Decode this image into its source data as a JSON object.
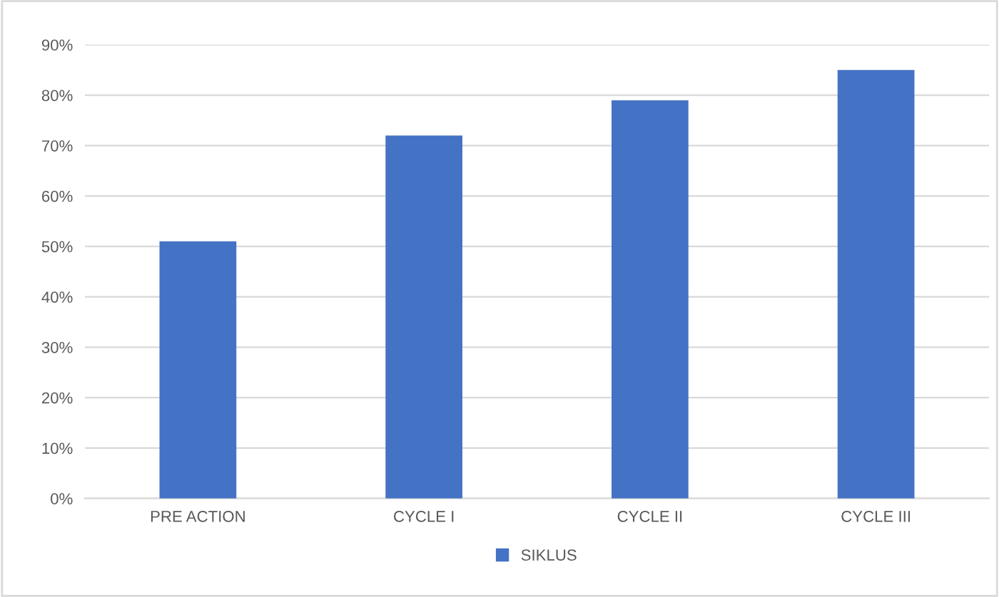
{
  "chart_data": {
    "type": "bar",
    "categories": [
      "PRE ACTION",
      "CYCLE I",
      "CYCLE II",
      "CYCLE III"
    ],
    "series": [
      {
        "name": "SIKLUS",
        "color": "#4472c4",
        "values": [
          51,
          72,
          79,
          85
        ]
      }
    ],
    "ylim": [
      0,
      90
    ],
    "yticks": [
      {
        "value": 0,
        "label": "0%"
      },
      {
        "value": 10,
        "label": "10%"
      },
      {
        "value": 20,
        "label": "20%"
      },
      {
        "value": 30,
        "label": "30%"
      },
      {
        "value": 40,
        "label": "40%"
      },
      {
        "value": 50,
        "label": "50%"
      },
      {
        "value": 60,
        "label": "60%"
      },
      {
        "value": 70,
        "label": "70%"
      },
      {
        "value": 80,
        "label": "80%"
      },
      {
        "value": 90,
        "label": "90%"
      }
    ],
    "grid": "y",
    "legend": "bottom"
  }
}
